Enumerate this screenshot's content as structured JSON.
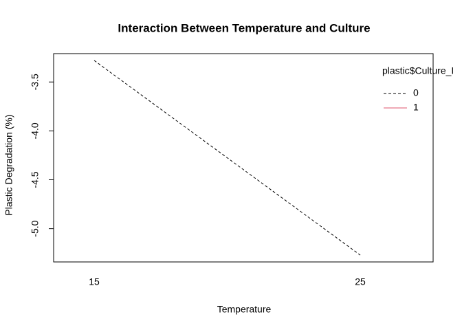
{
  "chart_data": {
    "type": "line",
    "title": "Interaction Between Temperature and Culture",
    "x_label": "Temperature",
    "y_label": "Plastic Degradation (%)",
    "legend_title": "plastic$Culture_I",
    "categories": [
      "15",
      "25"
    ],
    "series": [
      {
        "name": "0",
        "color": "#000000",
        "dash": "dashed",
        "values": [
          -3.28,
          -5.27
        ]
      },
      {
        "name": "1",
        "color": "#df536b",
        "dash": "solid",
        "values": [
          null,
          null
        ]
      }
    ],
    "ylim": [
      -5.34,
      -3.21
    ],
    "yticks": [
      -3.5,
      {
        "value": -4,
        "label": "-4.0"
      },
      -4.5,
      {
        "value": -5,
        "label": "-5.0"
      }
    ],
    "legend": "top-right"
  }
}
